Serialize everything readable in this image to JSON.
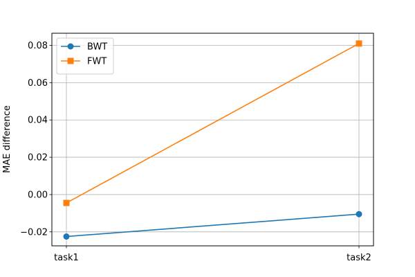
{
  "chart_data": {
    "type": "line",
    "title": "",
    "xlabel": "",
    "ylabel": "MAE difference",
    "categories": [
      "task1",
      "task2"
    ],
    "series": [
      {
        "name": "BWT",
        "values": [
          -0.0225,
          -0.0105
        ],
        "color": "#1f77b4",
        "marker": "circle"
      },
      {
        "name": "FWT",
        "values": [
          -0.0045,
          0.081
        ],
        "color": "#ff7f0e",
        "marker": "square"
      }
    ],
    "ylim": [
      -0.0275,
      0.0865
    ],
    "yticks": [
      -0.02,
      0.0,
      0.02,
      0.04,
      0.06,
      0.08
    ],
    "ytick_labels": [
      "−0.02",
      "0.00",
      "0.02",
      "0.04",
      "0.06",
      "0.08"
    ],
    "grid": true,
    "legend_position": "top-left"
  }
}
